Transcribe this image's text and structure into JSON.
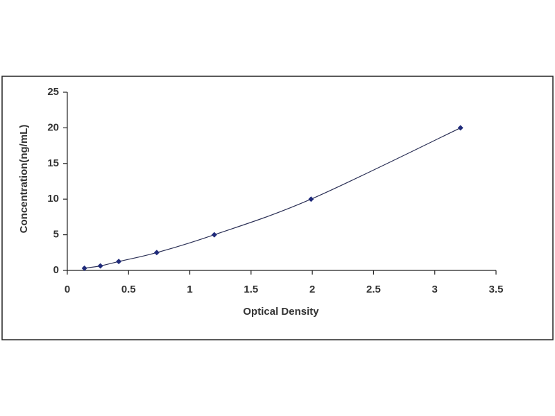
{
  "chart_data": {
    "type": "scatter",
    "x_label": "Optical Density",
    "y_label": "Concentration(ng/mL)",
    "x": [
      0.14,
      0.27,
      0.42,
      0.73,
      1.2,
      1.99,
      3.21
    ],
    "values": [
      0.31,
      0.63,
      1.25,
      2.5,
      5,
      10,
      20
    ],
    "color": "#1f2a7a",
    "line": true,
    "line_color": "#2a2f55",
    "xlim": [
      0,
      3.5
    ],
    "xticks": [
      0,
      0.5,
      1,
      1.5,
      2,
      2.5,
      3,
      3.5
    ],
    "ylim": [
      0,
      25
    ],
    "yticks": [
      0,
      5,
      10,
      15,
      20,
      25
    ],
    "grid": false
  }
}
